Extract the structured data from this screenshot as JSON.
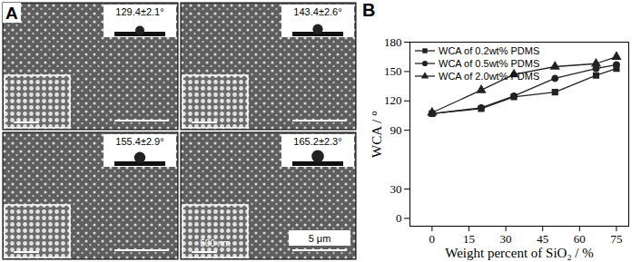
{
  "panel_a": {
    "label": "A",
    "contact_angles": [
      "129.4±2.1°",
      "143.4±2.6°",
      "155.4±2.9°",
      "165.2±2.3°"
    ],
    "inset_scale_bar": "500 nm",
    "scale_bar": "5 μm"
  },
  "chart_data": {
    "type": "line",
    "panel_label": "B",
    "x_label": "Weight percent of SiO₂ / %",
    "y_label": "WCA / °",
    "x": [
      0,
      20,
      33.3,
      50,
      66.7,
      75
    ],
    "series": [
      {
        "name": "WCA of 0.2wt% PDMS",
        "color": "#222222",
        "marker": "square",
        "values": [
          107,
          112,
          124,
          129,
          146,
          153
        ]
      },
      {
        "name": "WCA of 0.5wt% PDMS",
        "color": "#222222",
        "marker": "circle",
        "values": [
          107,
          113,
          125,
          143,
          153,
          157
        ]
      },
      {
        "name": "WCA of 2.0wt% PDMS",
        "color": "#222222",
        "marker": "triangle",
        "values": [
          108,
          131,
          147,
          155,
          158,
          165
        ]
      }
    ],
    "xlim": [
      -9,
      80
    ],
    "xticks": [
      0,
      15,
      30,
      45,
      60,
      75
    ],
    "ylim": [
      -8,
      180
    ],
    "yticks": [
      0,
      30,
      90,
      120,
      150,
      180
    ],
    "legend": "upper left",
    "line_style": "solid",
    "grid": false
  }
}
